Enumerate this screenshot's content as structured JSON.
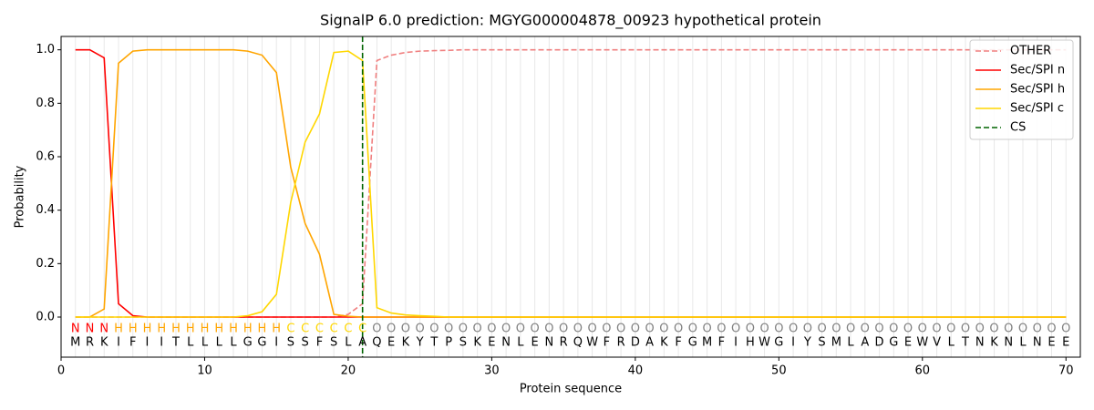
{
  "chart_data": {
    "type": "line",
    "title": "SignalP 6.0 prediction: MGYG000004878_00923 hypothetical protein",
    "x_label": "Protein sequence",
    "y_label": "Probability",
    "x": [
      1,
      2,
      3,
      4,
      5,
      6,
      7,
      8,
      9,
      10,
      11,
      12,
      13,
      14,
      15,
      16,
      17,
      18,
      19,
      20,
      21,
      22,
      23,
      24,
      25,
      26,
      27,
      28,
      29,
      30,
      31,
      32,
      33,
      34,
      35,
      36,
      37,
      38,
      39,
      40,
      41,
      42,
      43,
      44,
      45,
      46,
      47,
      48,
      49,
      50,
      51,
      52,
      53,
      54,
      55,
      56,
      57,
      58,
      59,
      60,
      61,
      62,
      63,
      64,
      65,
      66,
      67,
      68,
      69,
      70
    ],
    "sequence": [
      "M",
      "R",
      "K",
      "I",
      "F",
      "I",
      "I",
      "T",
      "L",
      "L",
      "L",
      "L",
      "G",
      "G",
      "I",
      "S",
      "S",
      "F",
      "S",
      "L",
      "A",
      "Q",
      "E",
      "K",
      "Y",
      "T",
      "P",
      "S",
      "K",
      "E",
      "N",
      "L",
      "E",
      "N",
      "R",
      "Q",
      "W",
      "F",
      "R",
      "D",
      "A",
      "K",
      "F",
      "G",
      "M",
      "F",
      "I",
      "H",
      "W",
      "G",
      "I",
      "Y",
      "S",
      "M",
      "L",
      "A",
      "D",
      "G",
      "E",
      "W",
      "V",
      "L",
      "T",
      "N",
      "K",
      "N",
      "L",
      "N",
      "E",
      "E"
    ],
    "labels": [
      "N",
      "N",
      "N",
      "H",
      "H",
      "H",
      "H",
      "H",
      "H",
      "H",
      "H",
      "H",
      "H",
      "H",
      "H",
      "C",
      "C",
      "C",
      "C",
      "C",
      "C",
      "O",
      "O",
      "O",
      "O",
      "O",
      "O",
      "O",
      "O",
      "O",
      "O",
      "O",
      "O",
      "O",
      "O",
      "O",
      "O",
      "O",
      "O",
      "O",
      "O",
      "O",
      "O",
      "O",
      "O",
      "O",
      "O",
      "O",
      "O",
      "O",
      "O",
      "O",
      "O",
      "O",
      "O",
      "O",
      "O",
      "O",
      "O",
      "O",
      "O",
      "O",
      "O",
      "O",
      "O",
      "O",
      "O",
      "O",
      "O",
      "O"
    ],
    "label_colors": {
      "N": "#ff0000",
      "H": "#ffa500",
      "C": "#ffd700",
      "O": "#808080"
    },
    "series": [
      {
        "name": "OTHER",
        "color": "#f08080",
        "dash": true,
        "values": [
          0,
          0,
          0,
          0,
          0,
          0,
          0,
          0,
          0,
          0,
          0,
          0,
          0,
          0,
          0,
          0,
          0,
          0,
          0,
          0.01,
          0.05,
          0.96,
          0.98,
          0.99,
          0.995,
          0.997,
          0.998,
          1,
          1,
          1,
          1,
          1,
          1,
          1,
          1,
          1,
          1,
          1,
          1,
          1,
          1,
          1,
          1,
          1,
          1,
          1,
          1,
          1,
          1,
          1,
          1,
          1,
          1,
          1,
          1,
          1,
          1,
          1,
          1,
          1,
          1,
          1,
          1,
          1,
          1,
          1,
          1,
          1,
          1,
          1
        ]
      },
      {
        "name": "Sec/SPI n",
        "color": "#ff0000",
        "dash": false,
        "values": [
          1,
          1,
          0.97,
          0.05,
          0.005,
          0,
          0,
          0,
          0,
          0,
          0,
          0,
          0,
          0,
          0,
          0,
          0,
          0,
          0,
          0,
          0,
          0,
          0,
          0,
          0,
          0,
          0,
          0,
          0,
          0,
          0,
          0,
          0,
          0,
          0,
          0,
          0,
          0,
          0,
          0,
          0,
          0,
          0,
          0,
          0,
          0,
          0,
          0,
          0,
          0,
          0,
          0,
          0,
          0,
          0,
          0,
          0,
          0,
          0,
          0,
          0,
          0,
          0,
          0,
          0,
          0,
          0,
          0,
          0,
          0
        ]
      },
      {
        "name": "Sec/SPI h",
        "color": "#ffa500",
        "dash": false,
        "values": [
          0,
          0,
          0.03,
          0.95,
          0.995,
          1,
          1,
          1,
          1,
          1,
          1,
          1,
          0.995,
          0.98,
          0.915,
          0.56,
          0.35,
          0.235,
          0.01,
          0.003,
          0,
          0,
          0,
          0,
          0,
          0,
          0,
          0,
          0,
          0,
          0,
          0,
          0,
          0,
          0,
          0,
          0,
          0,
          0,
          0,
          0,
          0,
          0,
          0,
          0,
          0,
          0,
          0,
          0,
          0,
          0,
          0,
          0,
          0,
          0,
          0,
          0,
          0,
          0,
          0,
          0,
          0,
          0,
          0,
          0,
          0,
          0,
          0,
          0,
          0
        ]
      },
      {
        "name": "Sec/SPI c",
        "color": "#ffd700",
        "dash": false,
        "values": [
          0,
          0,
          0,
          0,
          0,
          0,
          0,
          0,
          0,
          0,
          0,
          0,
          0.005,
          0.02,
          0.085,
          0.43,
          0.655,
          0.76,
          0.99,
          0.995,
          0.96,
          0.035,
          0.015,
          0.008,
          0.005,
          0.003,
          0,
          0,
          0,
          0,
          0,
          0,
          0,
          0,
          0,
          0,
          0,
          0,
          0,
          0,
          0,
          0,
          0,
          0,
          0,
          0,
          0,
          0,
          0,
          0,
          0,
          0,
          0,
          0,
          0,
          0,
          0,
          0,
          0,
          0,
          0,
          0,
          0,
          0,
          0,
          0,
          0,
          0,
          0,
          0
        ]
      }
    ],
    "cs": {
      "name": "CS",
      "color": "#006400",
      "position": 21
    },
    "xlim": [
      0,
      71
    ],
    "ylim": [
      -0.15,
      1.05
    ],
    "xticks": [
      0,
      10,
      20,
      30,
      40,
      50,
      60,
      70
    ],
    "yticks": [
      {
        "value": 0,
        "label": "0.0"
      },
      {
        "value": 0.2,
        "label": "0.2"
      },
      {
        "value": 0.4,
        "label": "0.4"
      },
      {
        "value": 0.6,
        "label": "0.6"
      },
      {
        "value": 0.8,
        "label": "0.8"
      },
      {
        "value": 1,
        "label": "1.0"
      }
    ],
    "legend": "upper right"
  }
}
